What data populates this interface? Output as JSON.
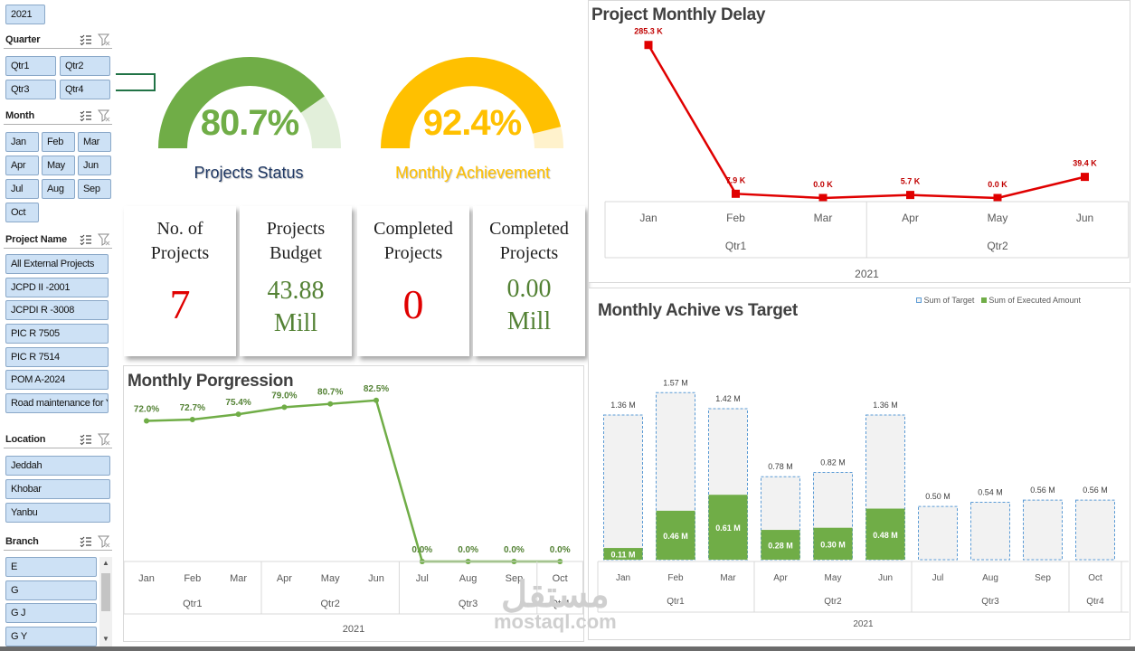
{
  "slicers": {
    "year": {
      "selected": "2021"
    },
    "quarter": {
      "title": "Quarter",
      "items": [
        "Qtr1",
        "Qtr2",
        "Qtr3",
        "Qtr4"
      ]
    },
    "month": {
      "title": "Month",
      "items": [
        "Jan",
        "Feb",
        "Mar",
        "Apr",
        "May",
        "Jun",
        "Jul",
        "Aug",
        "Sep",
        "Oct"
      ]
    },
    "project": {
      "title": "Project Name",
      "items": [
        "All External Projects",
        "JCPD II -2001",
        "JCPDI R -3008",
        "PIC R 7505",
        "PIC R 7514",
        "POM A-2024",
        "Road maintenance for Y..."
      ]
    },
    "location": {
      "title": "Location",
      "items": [
        "Jeddah",
        "Khobar",
        "Yanbu"
      ]
    },
    "branch": {
      "title": "Branch",
      "items": [
        "E",
        "G",
        "G J",
        "G Y"
      ]
    }
  },
  "gauges": [
    {
      "value_text": "80.7%",
      "value": 0.807,
      "caption": "Projects Status",
      "fill": "#70ad47",
      "track": "#e2efda",
      "value_color": "#70ad47",
      "caption_color": "#1f3864"
    },
    {
      "value_text": "92.4%",
      "value": 0.924,
      "caption": "Monthly Achievement",
      "fill": "#ffc000",
      "track": "#fff2cc",
      "value_color": "#ffc000",
      "caption_color": "#ffc000"
    }
  ],
  "kpis": [
    {
      "label": "No. of Projects",
      "value": "7",
      "unit": "",
      "color": "#e00000"
    },
    {
      "label": "Projects Budget",
      "value": "43.88",
      "unit": "Mill",
      "color": "#548235"
    },
    {
      "label": "Completed Projects",
      "value": "0",
      "unit": "",
      "color": "#e00000"
    },
    {
      "label": "Completed Projects",
      "value": "0.00",
      "unit": "Mill",
      "color": "#548235"
    }
  ],
  "charts": {
    "delay": {
      "title": "Project Monthly Delay"
    },
    "progression": {
      "title": "Monthly Porgression"
    },
    "achieve": {
      "title": "Monthly Achive vs Target",
      "legend": [
        "Sum of Target",
        "Sum of Executed Amount"
      ]
    }
  },
  "chart_data": [
    {
      "id": "delay",
      "type": "line",
      "title": "Project Monthly Delay",
      "x": [
        "Jan",
        "Feb",
        "Mar",
        "Apr",
        "May",
        "Jun"
      ],
      "quarters": [
        {
          "label": "Qtr1",
          "months": 3
        },
        {
          "label": "Qtr2",
          "months": 3
        }
      ],
      "year": "2021",
      "values": [
        285.3,
        7.9,
        0.0,
        5.7,
        0.0,
        39.4
      ],
      "data_labels": [
        "285.3 K",
        "7.9 K",
        "0.0 K",
        "5.7 K",
        "0.0 K",
        "39.4 K"
      ],
      "ylim": [
        0,
        300
      ],
      "color": "#e00000"
    },
    {
      "id": "progression",
      "type": "line",
      "title": "Monthly Porgression",
      "x": [
        "Jan",
        "Feb",
        "Mar",
        "Apr",
        "May",
        "Jun",
        "Jul",
        "Aug",
        "Sep",
        "Oct"
      ],
      "quarters": [
        {
          "label": "Qtr1",
          "months": 3
        },
        {
          "label": "Qtr2",
          "months": 3
        },
        {
          "label": "Qtr3",
          "months": 3
        },
        {
          "label": "Qtr4",
          "months": 1
        }
      ],
      "year": "2021",
      "values": [
        72.0,
        72.7,
        75.4,
        79.0,
        80.7,
        82.5,
        0.0,
        0.0,
        0.0,
        0.0
      ],
      "data_labels": [
        "72.0%",
        "72.7%",
        "75.4%",
        "79.0%",
        "80.7%",
        "82.5%",
        "0.0%",
        "0.0%",
        "0.0%",
        "0.0%"
      ],
      "ylim": [
        0,
        100
      ],
      "color": "#70ad47"
    },
    {
      "id": "achieve",
      "type": "bar",
      "title": "Monthly Achive vs Target",
      "categories": [
        "Jan",
        "Feb",
        "Mar",
        "Apr",
        "May",
        "Jun",
        "Jul",
        "Aug",
        "Sep",
        "Oct"
      ],
      "quarters": [
        {
          "label": "Qtr1",
          "months": 3
        },
        {
          "label": "Qtr2",
          "months": 3
        },
        {
          "label": "Qtr3",
          "months": 3
        },
        {
          "label": "Qtr4",
          "months": 1
        }
      ],
      "year": "2021",
      "legend_position": "top-right",
      "ylim": [
        0,
        1.6
      ],
      "series": [
        {
          "name": "Sum of Target",
          "values": [
            1.36,
            1.57,
            1.42,
            0.78,
            0.82,
            1.36,
            0.5,
            0.54,
            0.56,
            0.56
          ],
          "labels": [
            "1.36 M",
            "1.57 M",
            "1.42 M",
            "0.78 M",
            "0.82 M",
            "1.36 M",
            "0.50 M",
            "0.54 M",
            "0.56 M",
            "0.56 M"
          ],
          "color": "#f2f2f2"
        },
        {
          "name": "Sum of Executed Amount",
          "values": [
            0.11,
            0.46,
            0.61,
            0.28,
            0.3,
            0.48,
            0,
            0,
            0,
            0
          ],
          "labels": [
            "0.11 M",
            "0.46 M",
            "0.61 M",
            "0.28 M",
            "0.30 M",
            "0.48 M",
            "",
            "",
            "",
            ""
          ],
          "color": "#70ad47"
        }
      ]
    }
  ],
  "watermark": {
    "arabic": "مستقل",
    "latin": "mostaql.com"
  }
}
